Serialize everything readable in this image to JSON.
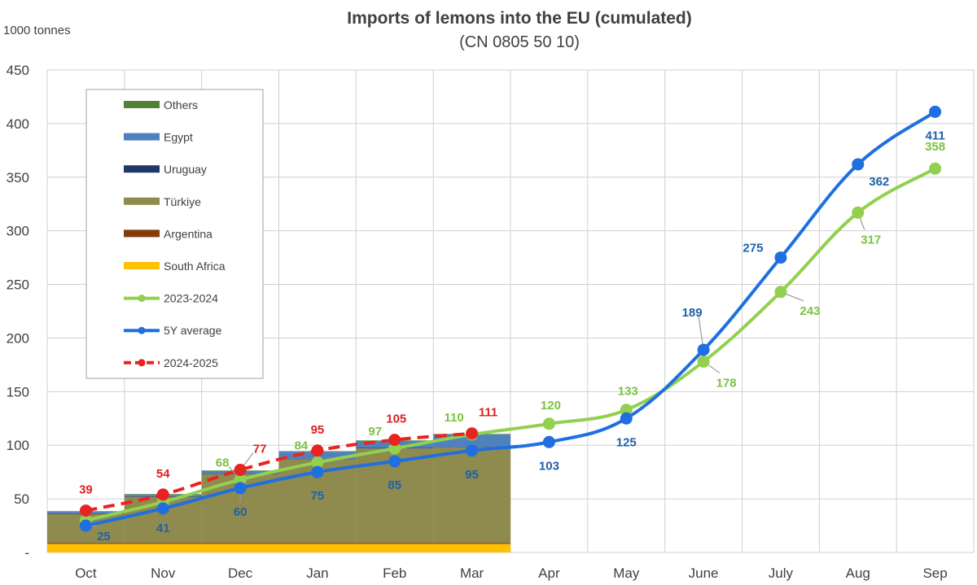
{
  "chart_data": {
    "type": "bar+line",
    "title": "Imports of lemons into the EU (cumulated)",
    "subtitle": "(CN 0805 50 10)",
    "ylabel": "1000 tonnes",
    "xlabel": "",
    "ylim": [
      0,
      450
    ],
    "yticks": [
      {
        "value": 0,
        "label": "-"
      },
      {
        "value": 50,
        "label": "50"
      },
      {
        "value": 100,
        "label": "100"
      },
      {
        "value": 150,
        "label": "150"
      },
      {
        "value": 200,
        "label": "200"
      },
      {
        "value": 250,
        "label": "250"
      },
      {
        "value": 300,
        "label": "300"
      },
      {
        "value": 350,
        "label": "350"
      },
      {
        "value": 400,
        "label": "400"
      },
      {
        "value": 450,
        "label": "450"
      }
    ],
    "grid": true,
    "legend_position": "top-left",
    "categories": [
      "Oct",
      "Nov",
      "Dec",
      "Jan",
      "Feb",
      "Mar",
      "Apr",
      "May",
      "June",
      "July",
      "Aug",
      "Sep"
    ],
    "stacked_series": [
      {
        "name": "South Africa",
        "color": "#FFC000",
        "values": [
          8,
          8,
          8,
          8,
          8,
          8
        ]
      },
      {
        "name": "Argentina",
        "color": "#843C0C",
        "values": [
          1,
          1,
          1,
          1,
          1,
          1
        ]
      },
      {
        "name": "Türkiye",
        "color": "#8F8A4E",
        "values": [
          27,
          43,
          64,
          78,
          88,
          89
        ]
      },
      {
        "name": "Uruguay",
        "color": "#1F3864",
        "values": [
          0.5,
          0.5,
          0.5,
          0.5,
          0.5,
          0.5
        ]
      },
      {
        "name": "Egypt",
        "color": "#4F81BD",
        "values": [
          1.5,
          1.5,
          2.5,
          6.5,
          6.5,
          11.5
        ]
      },
      {
        "name": "Others",
        "color": "#548235",
        "values": [
          0.5,
          0.5,
          0.5,
          0.5,
          0.5,
          0.5
        ]
      }
    ],
    "line_series": [
      {
        "name": "2023-2024",
        "color": "#92D050",
        "dashed": false,
        "values": [
          30,
          47,
          68,
          84,
          97,
          110,
          120,
          133,
          178,
          243,
          317,
          358
        ],
        "labels": [
          "",
          "",
          "68",
          "84",
          "97",
          "110",
          "120",
          "133",
          "178",
          "243",
          "317",
          "358"
        ]
      },
      {
        "name": "5Y average",
        "color": "#1F6FE0",
        "dashed": false,
        "values": [
          25,
          41,
          60,
          75,
          85,
          95,
          103,
          125,
          189,
          275,
          362,
          411
        ],
        "labels": [
          "25",
          "41",
          "60",
          "75",
          "85",
          "95",
          "103",
          "125",
          "189",
          "275",
          "362",
          "411"
        ]
      },
      {
        "name": "2024-2025",
        "color": "#E82323",
        "dashed": true,
        "values": [
          39,
          54,
          77,
          95,
          105,
          111
        ],
        "labels": [
          "39",
          "54",
          "77",
          "95",
          "105",
          "111"
        ]
      }
    ],
    "legend_order": [
      "Others",
      "Egypt",
      "Uruguay",
      "Türkiye",
      "Argentina",
      "South Africa",
      "2023-2024",
      "5Y average",
      "2024-2025"
    ],
    "label_colors": {
      "2023-2024": "#7CC240",
      "5Y average": "#1E62A8",
      "2024-2025": "#E01F1F"
    }
  }
}
